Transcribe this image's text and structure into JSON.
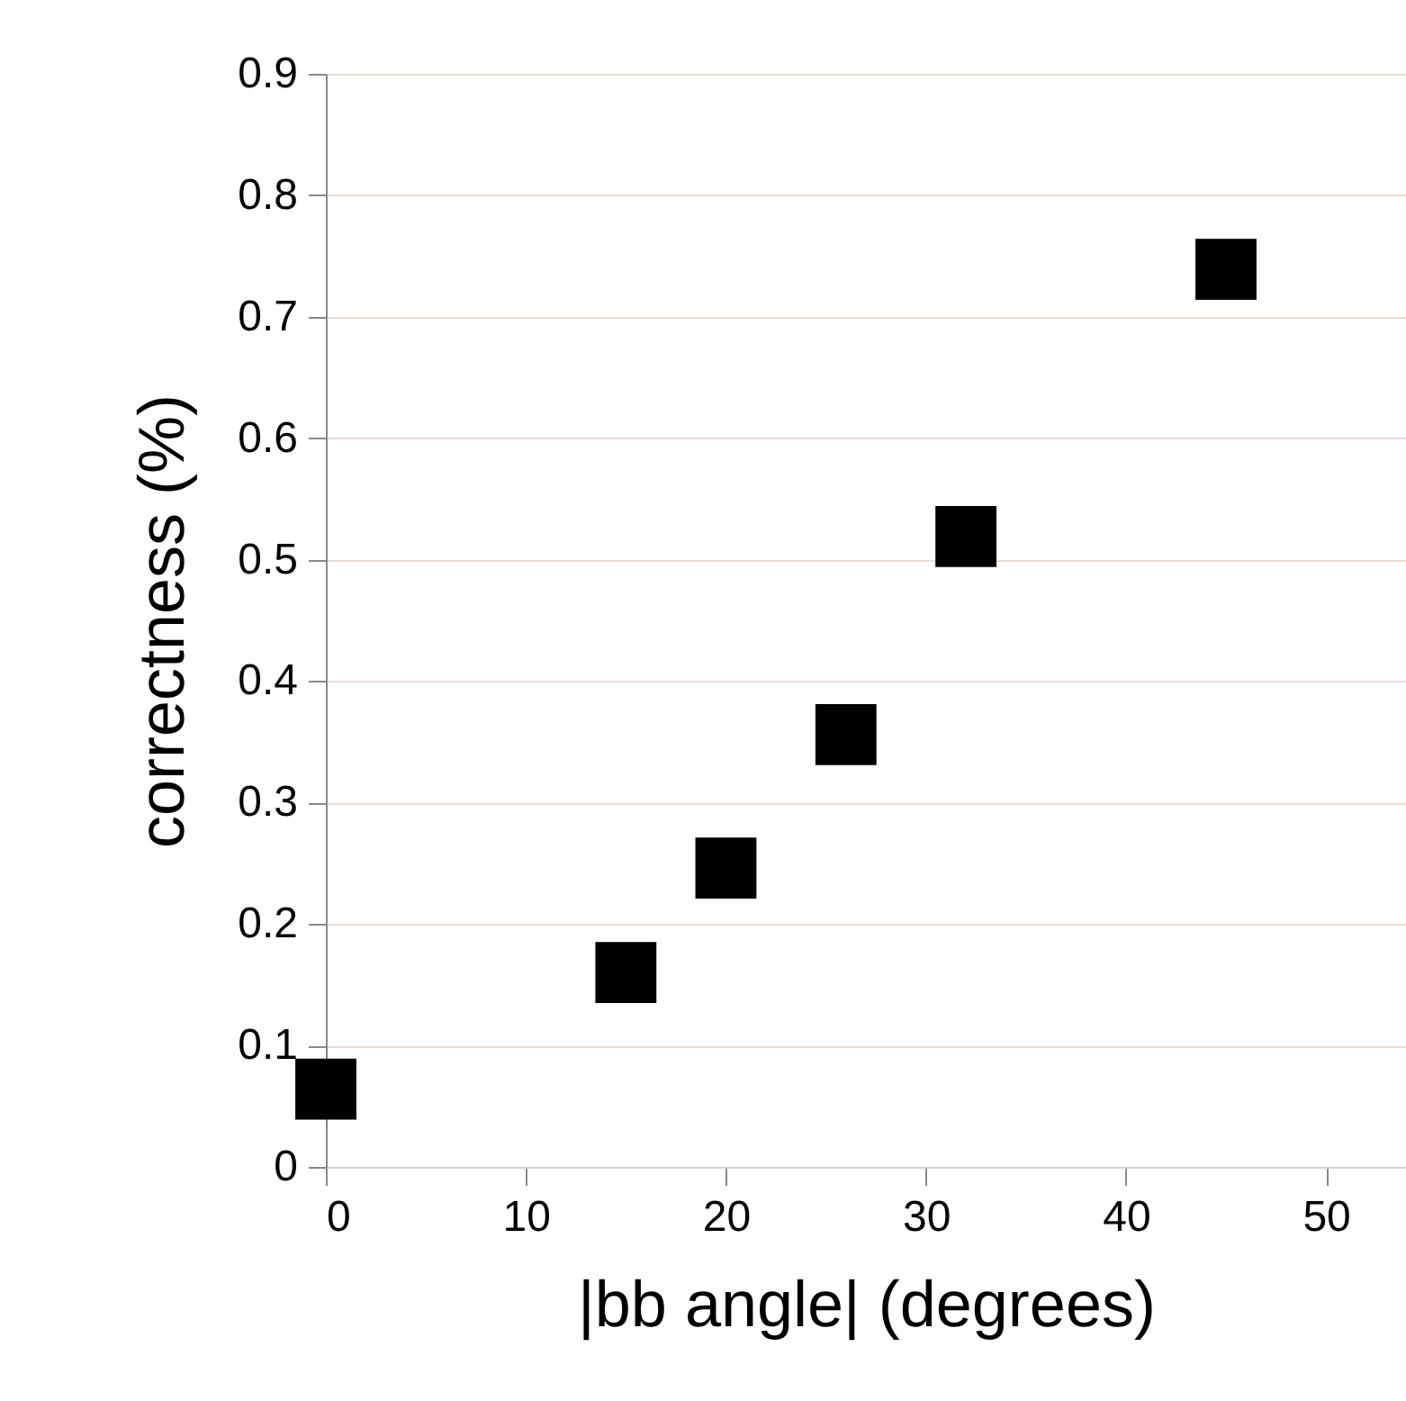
{
  "chart_data": {
    "type": "scatter",
    "xlabel": "|bb angle| (degrees)",
    "ylabel": "correctness (%)",
    "x": [
      0,
      15,
      20,
      26,
      32,
      45
    ],
    "series": [
      {
        "color": "#000000",
        "values": [
          0.064,
          0.16,
          0.246,
          0.356,
          0.519,
          0.739
        ]
      }
    ],
    "marker": "square",
    "xlim": [
      0,
      54
    ],
    "ylim": [
      0,
      0.9
    ],
    "xticks": [
      0,
      10,
      20,
      30,
      40,
      50
    ],
    "yticks": [
      0,
      0.1,
      0.2,
      0.3,
      0.4,
      0.5,
      0.6,
      0.7,
      0.8,
      0.9
    ],
    "grid": "y"
  }
}
